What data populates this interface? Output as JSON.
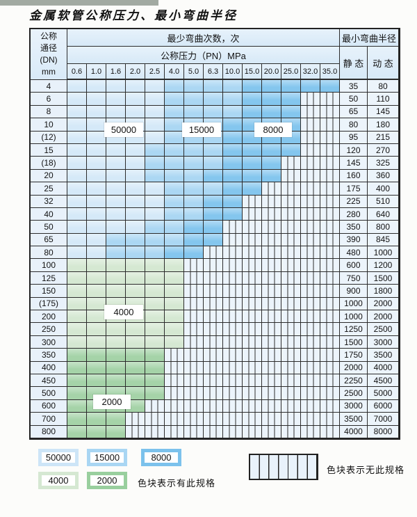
{
  "title": "金属软管公称压力、最小弯曲半径",
  "colors": {
    "b1": "#d5e9f8",
    "b2": "#abd7f3",
    "b3": "#84c6ee",
    "g1": "#d5e8d2",
    "g2": "#a5d3a8",
    "hatch_fill": "#ecf4fb",
    "hatch_line": "#2e2e2e"
  },
  "table": {
    "header": {
      "dn_lines": [
        "公称",
        "通径",
        "(DN)",
        "mm"
      ],
      "cycles_title": "最少弯曲次数，次",
      "pressure_title": "公称压力（PN）MPa",
      "radius_title": "最小弯曲半径",
      "static_label": "静 态",
      "dynamic_label": "动 态",
      "pressures": [
        "0.6",
        "1.0",
        "1.6",
        "2.0",
        "2.5",
        "4.0",
        "5.0",
        "6.3",
        "10.0",
        "15.0",
        "20.0",
        "25.0",
        "32.0",
        "35.0"
      ]
    },
    "rows": [
      {
        "dn": "4",
        "static": "35",
        "dynamic": "80",
        "bands": [
          [
            0,
            4,
            "b1"
          ],
          [
            5,
            8,
            "b2"
          ],
          [
            9,
            13,
            "b3"
          ]
        ]
      },
      {
        "dn": "6",
        "static": "50",
        "dynamic": "110",
        "bands": [
          [
            0,
            4,
            "b1"
          ],
          [
            5,
            8,
            "b2"
          ],
          [
            9,
            11,
            "b3"
          ]
        ]
      },
      {
        "dn": "8",
        "static": "65",
        "dynamic": "145",
        "bands": [
          [
            0,
            4,
            "b1"
          ],
          [
            5,
            8,
            "b2"
          ],
          [
            9,
            11,
            "b3"
          ]
        ]
      },
      {
        "dn": "10",
        "static": "80",
        "dynamic": "180",
        "bands": [
          [
            0,
            4,
            "b1"
          ],
          [
            5,
            7,
            "b2"
          ],
          [
            8,
            11,
            "b3"
          ]
        ]
      },
      {
        "dn": "(12)",
        "static": "95",
        "dynamic": "215",
        "bands": [
          [
            0,
            4,
            "b1"
          ],
          [
            5,
            7,
            "b2"
          ],
          [
            8,
            11,
            "b3"
          ]
        ]
      },
      {
        "dn": "15",
        "static": "120",
        "dynamic": "270",
        "bands": [
          [
            0,
            3,
            "b1"
          ],
          [
            4,
            7,
            "b2"
          ],
          [
            8,
            11,
            "b3"
          ]
        ]
      },
      {
        "dn": "(18)",
        "static": "145",
        "dynamic": "325",
        "bands": [
          [
            0,
            3,
            "b1"
          ],
          [
            4,
            7,
            "b2"
          ],
          [
            8,
            10,
            "b3"
          ]
        ]
      },
      {
        "dn": "20",
        "static": "160",
        "dynamic": "360",
        "bands": [
          [
            0,
            3,
            "b1"
          ],
          [
            4,
            6,
            "b2"
          ],
          [
            7,
            10,
            "b3"
          ]
        ]
      },
      {
        "dn": "25",
        "static": "175",
        "dynamic": "400",
        "bands": [
          [
            0,
            4,
            "b1"
          ],
          [
            5,
            7,
            "b2"
          ],
          [
            8,
            9,
            "b3"
          ]
        ]
      },
      {
        "dn": "32",
        "static": "225",
        "dynamic": "510",
        "bands": [
          [
            0,
            4,
            "b1"
          ],
          [
            5,
            6,
            "b2"
          ],
          [
            7,
            8,
            "b3"
          ]
        ]
      },
      {
        "dn": "40",
        "static": "280",
        "dynamic": "640",
        "bands": [
          [
            0,
            4,
            "b1"
          ],
          [
            5,
            6,
            "b2"
          ],
          [
            7,
            8,
            "b3"
          ]
        ]
      },
      {
        "dn": "50",
        "static": "350",
        "dynamic": "800",
        "bands": [
          [
            0,
            3,
            "b1"
          ],
          [
            4,
            5,
            "b2"
          ],
          [
            6,
            7,
            "b3"
          ]
        ]
      },
      {
        "dn": "65",
        "static": "390",
        "dynamic": "845",
        "bands": [
          [
            0,
            1,
            "b1"
          ],
          [
            2,
            5,
            "b2"
          ],
          [
            6,
            7,
            "b3"
          ]
        ]
      },
      {
        "dn": "80",
        "static": "480",
        "dynamic": "1000",
        "bands": [
          [
            0,
            1,
            "b1"
          ],
          [
            2,
            4,
            "b2"
          ],
          [
            5,
            6,
            "b3"
          ]
        ]
      },
      {
        "dn": "100",
        "static": "600",
        "dynamic": "1200",
        "bands": [
          [
            0,
            5,
            "g1"
          ]
        ]
      },
      {
        "dn": "125",
        "static": "750",
        "dynamic": "1500",
        "bands": [
          [
            0,
            5,
            "g1"
          ]
        ]
      },
      {
        "dn": "150",
        "static": "900",
        "dynamic": "1800",
        "bands": [
          [
            0,
            5,
            "g1"
          ]
        ]
      },
      {
        "dn": "(175)",
        "static": "1000",
        "dynamic": "2000",
        "bands": [
          [
            0,
            5,
            "g1"
          ]
        ]
      },
      {
        "dn": "200",
        "static": "1000",
        "dynamic": "2000",
        "bands": [
          [
            0,
            5,
            "g1"
          ]
        ]
      },
      {
        "dn": "250",
        "static": "1250",
        "dynamic": "2500",
        "bands": [
          [
            0,
            5,
            "g1"
          ]
        ]
      },
      {
        "dn": "300",
        "static": "1500",
        "dynamic": "3000",
        "bands": [
          [
            0,
            5,
            "g1"
          ]
        ]
      },
      {
        "dn": "350",
        "static": "1750",
        "dynamic": "3500",
        "bands": [
          [
            0,
            4,
            "g2"
          ]
        ]
      },
      {
        "dn": "400",
        "static": "2000",
        "dynamic": "4000",
        "bands": [
          [
            0,
            4,
            "g2"
          ]
        ]
      },
      {
        "dn": "450",
        "static": "2250",
        "dynamic": "4500",
        "bands": [
          [
            0,
            4,
            "g2"
          ]
        ]
      },
      {
        "dn": "500",
        "static": "2500",
        "dynamic": "5000",
        "bands": [
          [
            0,
            4,
            "g2"
          ]
        ]
      },
      {
        "dn": "600",
        "static": "3000",
        "dynamic": "6000",
        "bands": [
          [
            0,
            3,
            "g2"
          ]
        ]
      },
      {
        "dn": "700",
        "static": "3500",
        "dynamic": "7000",
        "bands": [
          [
            0,
            2,
            "g2"
          ]
        ]
      },
      {
        "dn": "800",
        "static": "4000",
        "dynamic": "8000",
        "bands": [
          [
            0,
            2,
            "g2"
          ]
        ]
      }
    ],
    "overlay_labels": [
      {
        "key": "50000",
        "text": "50000"
      },
      {
        "key": "15000",
        "text": "15000"
      },
      {
        "key": "8000",
        "text": "8000"
      },
      {
        "key": "4000",
        "text": "4000"
      },
      {
        "key": "2000",
        "text": "2000"
      }
    ]
  },
  "legend": {
    "items": [
      {
        "value": "50000",
        "color": "#cde5f7"
      },
      {
        "value": "15000",
        "color": "#a9d6f3"
      },
      {
        "value": "8000",
        "color": "#7cc2ec"
      },
      {
        "value": "4000",
        "color": "#d5e8d2"
      },
      {
        "value": "2000",
        "color": "#99cf9e"
      }
    ],
    "has_spec_note": "色块表示有此规格",
    "no_spec_note": "色块表示无此规格"
  }
}
